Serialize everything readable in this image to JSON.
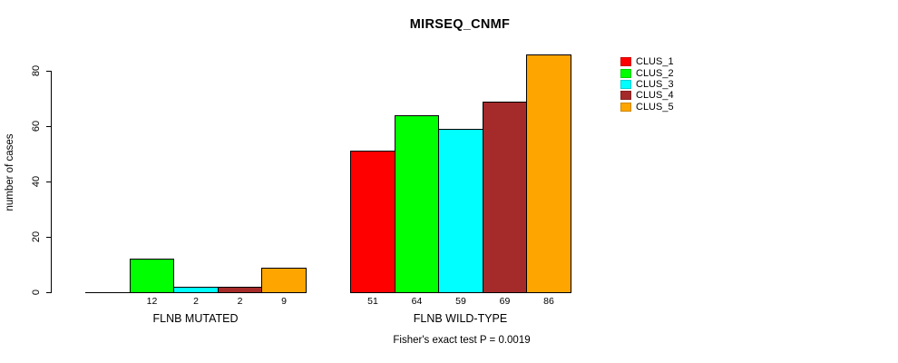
{
  "title": "MIRSEQ_CNMF",
  "y_axis": {
    "label": "number of cases"
  },
  "footnote": "Fisher's exact test P = 0.0019",
  "chart_data": {
    "type": "bar",
    "title": "MIRSEQ_CNMF",
    "xlabel": "",
    "ylabel": "number of cases",
    "ylim": [
      0,
      86
    ],
    "yticks": [
      0,
      20,
      40,
      60,
      80
    ],
    "grid": false,
    "legend_position": "right",
    "categories": [
      "FLNB MUTATED",
      "FLNB WILD-TYPE"
    ],
    "series": [
      {
        "name": "CLUS_1",
        "color": "#FF0000",
        "values": [
          0,
          51
        ]
      },
      {
        "name": "CLUS_2",
        "color": "#00FF00",
        "values": [
          12,
          64
        ]
      },
      {
        "name": "CLUS_3",
        "color": "#00FFFF",
        "values": [
          2,
          59
        ]
      },
      {
        "name": "CLUS_4",
        "color": "#A52A2A",
        "values": [
          2,
          69
        ]
      },
      {
        "name": "CLUS_5",
        "color": "#FFA500",
        "values": [
          9,
          86
        ]
      }
    ],
    "bar_value_labels": true,
    "zero_bars_shown_as_line": true,
    "annotation": "Fisher's exact test P = 0.0019"
  }
}
